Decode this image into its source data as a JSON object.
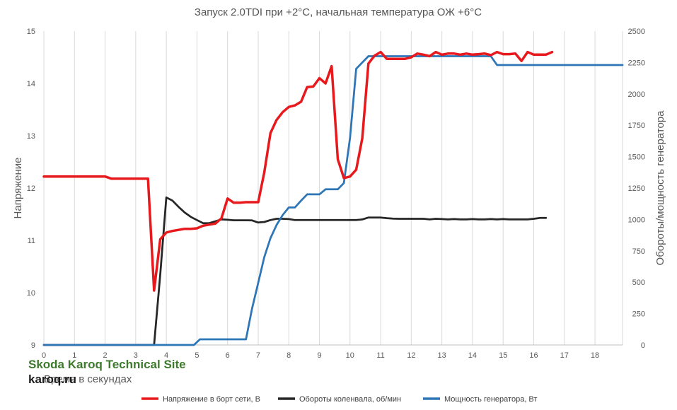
{
  "chart_data": {
    "type": "line",
    "title": "Запуск 2.0TDI при +2°C, начальная температура ОЖ +6°C",
    "xlabel": "Время в секундах",
    "ylabel_left": "Напряжение",
    "ylabel_right": "Обороты/мощность генератора",
    "xlim": [
      0,
      18.9
    ],
    "ylim_left": [
      9,
      15
    ],
    "ylim_right": [
      0,
      2500
    ],
    "x_ticks": [
      "0",
      "1",
      "2",
      "3",
      "4",
      "5",
      "6",
      "7",
      "8",
      "9",
      "10",
      "11",
      "12",
      "13",
      "14",
      "15",
      "16",
      "17",
      "18"
    ],
    "y_left_ticks": [
      "9",
      "10",
      "11",
      "12",
      "13",
      "14",
      "15"
    ],
    "y_right_ticks": [
      "0",
      "250",
      "500",
      "750",
      "1000",
      "1250",
      "1500",
      "1750",
      "2000",
      "2250",
      "2500"
    ],
    "grid": "vertical",
    "legend_position": "bottom",
    "series": [
      {
        "name": "Напряжение в борт сети, В",
        "axis": "left",
        "color": "#e8191d",
        "points": [
          [
            0,
            12.22
          ],
          [
            1,
            12.22
          ],
          [
            2,
            12.22
          ],
          [
            2.2,
            12.18
          ],
          [
            3,
            12.18
          ],
          [
            3.4,
            12.18
          ],
          [
            3.6,
            10.04
          ],
          [
            3.8,
            11.02
          ],
          [
            4,
            11.15
          ],
          [
            4.2,
            11.18
          ],
          [
            4.4,
            11.2
          ],
          [
            4.6,
            11.22
          ],
          [
            4.8,
            11.22
          ],
          [
            5,
            11.23
          ],
          [
            5.2,
            11.28
          ],
          [
            5.4,
            11.3
          ],
          [
            5.6,
            11.32
          ],
          [
            5.8,
            11.42
          ],
          [
            6,
            11.8
          ],
          [
            6.2,
            11.72
          ],
          [
            6.4,
            11.72
          ],
          [
            6.6,
            11.73
          ],
          [
            6.8,
            11.73
          ],
          [
            7,
            11.73
          ],
          [
            7.2,
            12.3
          ],
          [
            7.4,
            13.05
          ],
          [
            7.6,
            13.3
          ],
          [
            7.8,
            13.45
          ],
          [
            8,
            13.55
          ],
          [
            8.2,
            13.58
          ],
          [
            8.4,
            13.65
          ],
          [
            8.6,
            13.93
          ],
          [
            8.8,
            13.94
          ],
          [
            9,
            14.1
          ],
          [
            9.2,
            14.0
          ],
          [
            9.4,
            14.33
          ],
          [
            9.6,
            12.55
          ],
          [
            9.8,
            12.19
          ],
          [
            10,
            12.22
          ],
          [
            10.2,
            12.35
          ],
          [
            10.4,
            12.95
          ],
          [
            10.6,
            14.38
          ],
          [
            10.8,
            14.53
          ],
          [
            11,
            14.6
          ],
          [
            11.2,
            14.47
          ],
          [
            11.4,
            14.47
          ],
          [
            11.6,
            14.47
          ],
          [
            11.8,
            14.47
          ],
          [
            12,
            14.5
          ],
          [
            12.2,
            14.57
          ],
          [
            12.4,
            14.55
          ],
          [
            12.6,
            14.52
          ],
          [
            12.8,
            14.6
          ],
          [
            13,
            14.55
          ],
          [
            13.2,
            14.57
          ],
          [
            13.4,
            14.57
          ],
          [
            13.6,
            14.55
          ],
          [
            13.8,
            14.57
          ],
          [
            14,
            14.55
          ],
          [
            14.2,
            14.56
          ],
          [
            14.4,
            14.57
          ],
          [
            14.6,
            14.54
          ],
          [
            14.8,
            14.6
          ],
          [
            15,
            14.56
          ],
          [
            15.2,
            14.56
          ],
          [
            15.4,
            14.57
          ],
          [
            15.6,
            14.43
          ],
          [
            15.8,
            14.6
          ],
          [
            16,
            14.55
          ],
          [
            16.2,
            14.55
          ],
          [
            16.4,
            14.55
          ],
          [
            16.6,
            14.6
          ]
        ]
      },
      {
        "name": "Обороты коленвала, об/мин",
        "axis": "right",
        "color": "#262626",
        "points": [
          [
            0,
            0
          ],
          [
            1,
            0
          ],
          [
            2,
            0
          ],
          [
            3,
            0
          ],
          [
            3.6,
            0
          ],
          [
            3.8,
            560
          ],
          [
            4,
            1175
          ],
          [
            4.2,
            1150
          ],
          [
            4.4,
            1100
          ],
          [
            4.6,
            1055
          ],
          [
            4.8,
            1020
          ],
          [
            5,
            995
          ],
          [
            5.2,
            970
          ],
          [
            5.4,
            970
          ],
          [
            5.6,
            985
          ],
          [
            5.8,
            1000
          ],
          [
            6,
            997
          ],
          [
            6.2,
            993
          ],
          [
            6.4,
            993
          ],
          [
            6.6,
            993
          ],
          [
            6.8,
            992
          ],
          [
            7,
            975
          ],
          [
            7.2,
            980
          ],
          [
            7.4,
            995
          ],
          [
            7.6,
            1005
          ],
          [
            7.8,
            1005
          ],
          [
            8,
            1003
          ],
          [
            8.2,
            995
          ],
          [
            8.4,
            995
          ],
          [
            8.6,
            995
          ],
          [
            8.8,
            995
          ],
          [
            9,
            995
          ],
          [
            9.2,
            995
          ],
          [
            9.4,
            995
          ],
          [
            9.6,
            995
          ],
          [
            9.8,
            995
          ],
          [
            10,
            995
          ],
          [
            10.2,
            995
          ],
          [
            10.4,
            1000
          ],
          [
            10.6,
            1015
          ],
          [
            10.8,
            1015
          ],
          [
            11,
            1015
          ],
          [
            11.2,
            1010
          ],
          [
            11.4,
            1007
          ],
          [
            11.6,
            1005
          ],
          [
            11.8,
            1005
          ],
          [
            12,
            1005
          ],
          [
            12.2,
            1005
          ],
          [
            12.4,
            1005
          ],
          [
            12.6,
            1000
          ],
          [
            12.8,
            1005
          ],
          [
            13,
            1003
          ],
          [
            13.2,
            1000
          ],
          [
            13.4,
            1003
          ],
          [
            13.6,
            1000
          ],
          [
            13.8,
            1000
          ],
          [
            14,
            1003
          ],
          [
            14.2,
            1000
          ],
          [
            14.4,
            1000
          ],
          [
            14.6,
            1003
          ],
          [
            14.8,
            1000
          ],
          [
            15,
            1003
          ],
          [
            15.2,
            1000
          ],
          [
            15.4,
            1000
          ],
          [
            15.6,
            1000
          ],
          [
            15.8,
            1000
          ],
          [
            16,
            1005
          ],
          [
            16.2,
            1012
          ],
          [
            16.4,
            1012
          ]
        ]
      },
      {
        "name": "Мощность генератора, Вт",
        "axis": "right",
        "color": "#2e75b6",
        "points": [
          [
            0,
            0
          ],
          [
            1,
            0
          ],
          [
            2,
            0
          ],
          [
            3,
            0
          ],
          [
            4,
            0
          ],
          [
            4.9,
            0
          ],
          [
            5.1,
            45
          ],
          [
            5.3,
            45
          ],
          [
            5.5,
            45
          ],
          [
            5.7,
            45
          ],
          [
            6,
            45
          ],
          [
            6.4,
            45
          ],
          [
            6.6,
            45
          ],
          [
            6.8,
            290
          ],
          [
            7,
            495
          ],
          [
            7.2,
            700
          ],
          [
            7.4,
            850
          ],
          [
            7.6,
            955
          ],
          [
            7.8,
            1035
          ],
          [
            8,
            1095
          ],
          [
            8.2,
            1095
          ],
          [
            8.4,
            1150
          ],
          [
            8.6,
            1200
          ],
          [
            8.8,
            1200
          ],
          [
            9,
            1200
          ],
          [
            9.2,
            1240
          ],
          [
            9.4,
            1240
          ],
          [
            9.6,
            1240
          ],
          [
            9.8,
            1290
          ],
          [
            10,
            1650
          ],
          [
            10.2,
            2200
          ],
          [
            10.4,
            2250
          ],
          [
            10.6,
            2300
          ],
          [
            10.8,
            2300
          ],
          [
            11,
            2300
          ],
          [
            12,
            2300
          ],
          [
            13,
            2300
          ],
          [
            14,
            2300
          ],
          [
            14.3,
            2300
          ],
          [
            14.6,
            2300
          ],
          [
            14.8,
            2230
          ],
          [
            15,
            2230
          ],
          [
            16,
            2230
          ],
          [
            17,
            2230
          ],
          [
            18.9,
            2230
          ]
        ]
      }
    ]
  },
  "watermark": {
    "line1": "Skoda Karoq Technical Site",
    "line2": "karoq.ru"
  }
}
